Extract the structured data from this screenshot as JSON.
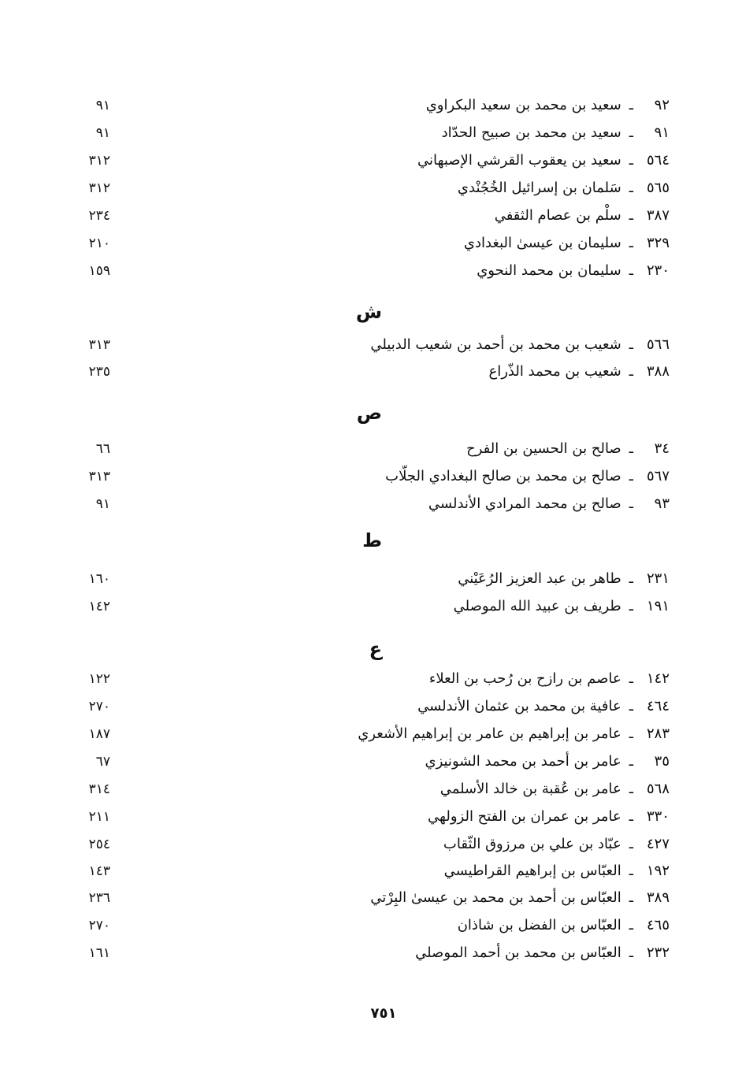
{
  "sections": [
    {
      "letter": "",
      "entries": [
        {
          "num": "٩٢",
          "name": "سعيد بن محمد بن سعيد البكراوي",
          "page": "٩١"
        },
        {
          "num": "٩١",
          "name": "سعيد بن محمد بن صبيح الحدّاد",
          "page": "٩١"
        },
        {
          "num": "٥٦٤",
          "name": "سعيد بن يعقوب القرشي الإصبهاني",
          "page": "٣١٢"
        },
        {
          "num": "٥٦٥",
          "name": "سَلمان بن إسرائيل الخُجُنْدي",
          "page": "٣١٢"
        },
        {
          "num": "٣٨٧",
          "name": "سلْم بن عصام الثقفي",
          "page": "٢٣٤"
        },
        {
          "num": "٣٢٩",
          "name": "سليمان بن عيسىٰ البغدادي",
          "page": "٢١٠"
        },
        {
          "num": "٢٣٠",
          "name": "سليمان بن محمد النحوي",
          "page": "١٥٩"
        }
      ]
    },
    {
      "letter": "ش",
      "entries": [
        {
          "num": "٥٦٦",
          "name": "شعيب بن محمد بن أحمد بن شعيب الدبيلي",
          "page": "٣١٣"
        },
        {
          "num": "٣٨٨",
          "name": "شعيب بن محمد الذّراع",
          "page": "٢٣٥"
        }
      ]
    },
    {
      "letter": "ص",
      "entries": [
        {
          "num": "٣٤",
          "name": "صالح بن الحسين بن الفرح",
          "page": "٦٦"
        },
        {
          "num": "٥٦٧",
          "name": "صالح بن محمد بن صالح البغدادي الجلّاب",
          "page": "٣١٣"
        },
        {
          "num": "٩٣",
          "name": "صالح بن محمد المرادي الأندلسي",
          "page": "٩١"
        }
      ]
    },
    {
      "letter": "ط",
      "entries": [
        {
          "num": "٢٣١",
          "name": "طاهر بن عبد العزيز الرُعَيْني",
          "page": "١٦٠"
        },
        {
          "num": "١٩١",
          "name": "طريف بن عبيد الله الموصلي",
          "page": "١٤٢"
        }
      ]
    },
    {
      "letter": "ع",
      "entries": [
        {
          "num": "١٤٢",
          "name": "عاصم بن رازح بن رُحب بن العلاء",
          "page": "١٢٢"
        },
        {
          "num": "٤٦٤",
          "name": "عافية بن محمد بن عثمان الأندلسي",
          "page": "٢٧٠"
        },
        {
          "num": "٢٨٣",
          "name": "عامر بن إبراهيم بن عامر بن إبراهيم الأشعري",
          "page": "١٨٧"
        },
        {
          "num": "٣٥",
          "name": "عامر بن أحمد بن محمد الشونيزي",
          "page": "٦٧"
        },
        {
          "num": "٥٦٨",
          "name": "عامر بن عُقبة بن خالد الأسلمي",
          "page": "٣١٤"
        },
        {
          "num": "٣٣٠",
          "name": "عامر بن عمران بن الفتح الزولهي",
          "page": "٢١١"
        },
        {
          "num": "٤٢٧",
          "name": "عبّاد بن علي بن مرزوق الثّقاب",
          "page": "٢٥٤"
        },
        {
          "num": "١٩٢",
          "name": "العبّاس بن إبراهيم القراطيسي",
          "page": "١٤٣"
        },
        {
          "num": "٣٨٩",
          "name": "العبّاس بن أحمد بن محمد بن عيسىٰ البِرْتي",
          "page": "٢٣٦"
        },
        {
          "num": "٤٦٥",
          "name": "العبّاس بن الفضل بن شاذان",
          "page": "٢٧٠"
        },
        {
          "num": "٢٣٢",
          "name": "العبّاس بن محمد بن أحمد الموصلي",
          "page": "١٦١"
        }
      ]
    }
  ],
  "separator": "ـ",
  "folio": "٧٥١"
}
